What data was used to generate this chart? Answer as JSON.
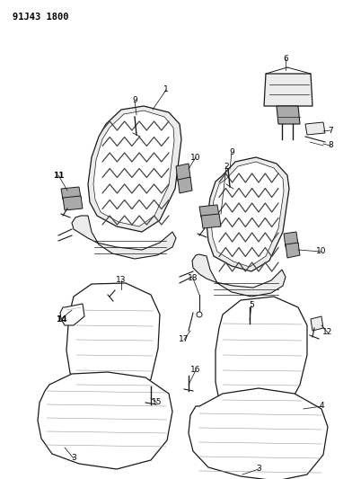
{
  "title": "91J43 1800",
  "bg_color": "#ffffff",
  "line_color": "#1a1a1a",
  "gray_fill": "#d8d8d8",
  "light_gray": "#ececec",
  "dark_gray": "#aaaaaa"
}
